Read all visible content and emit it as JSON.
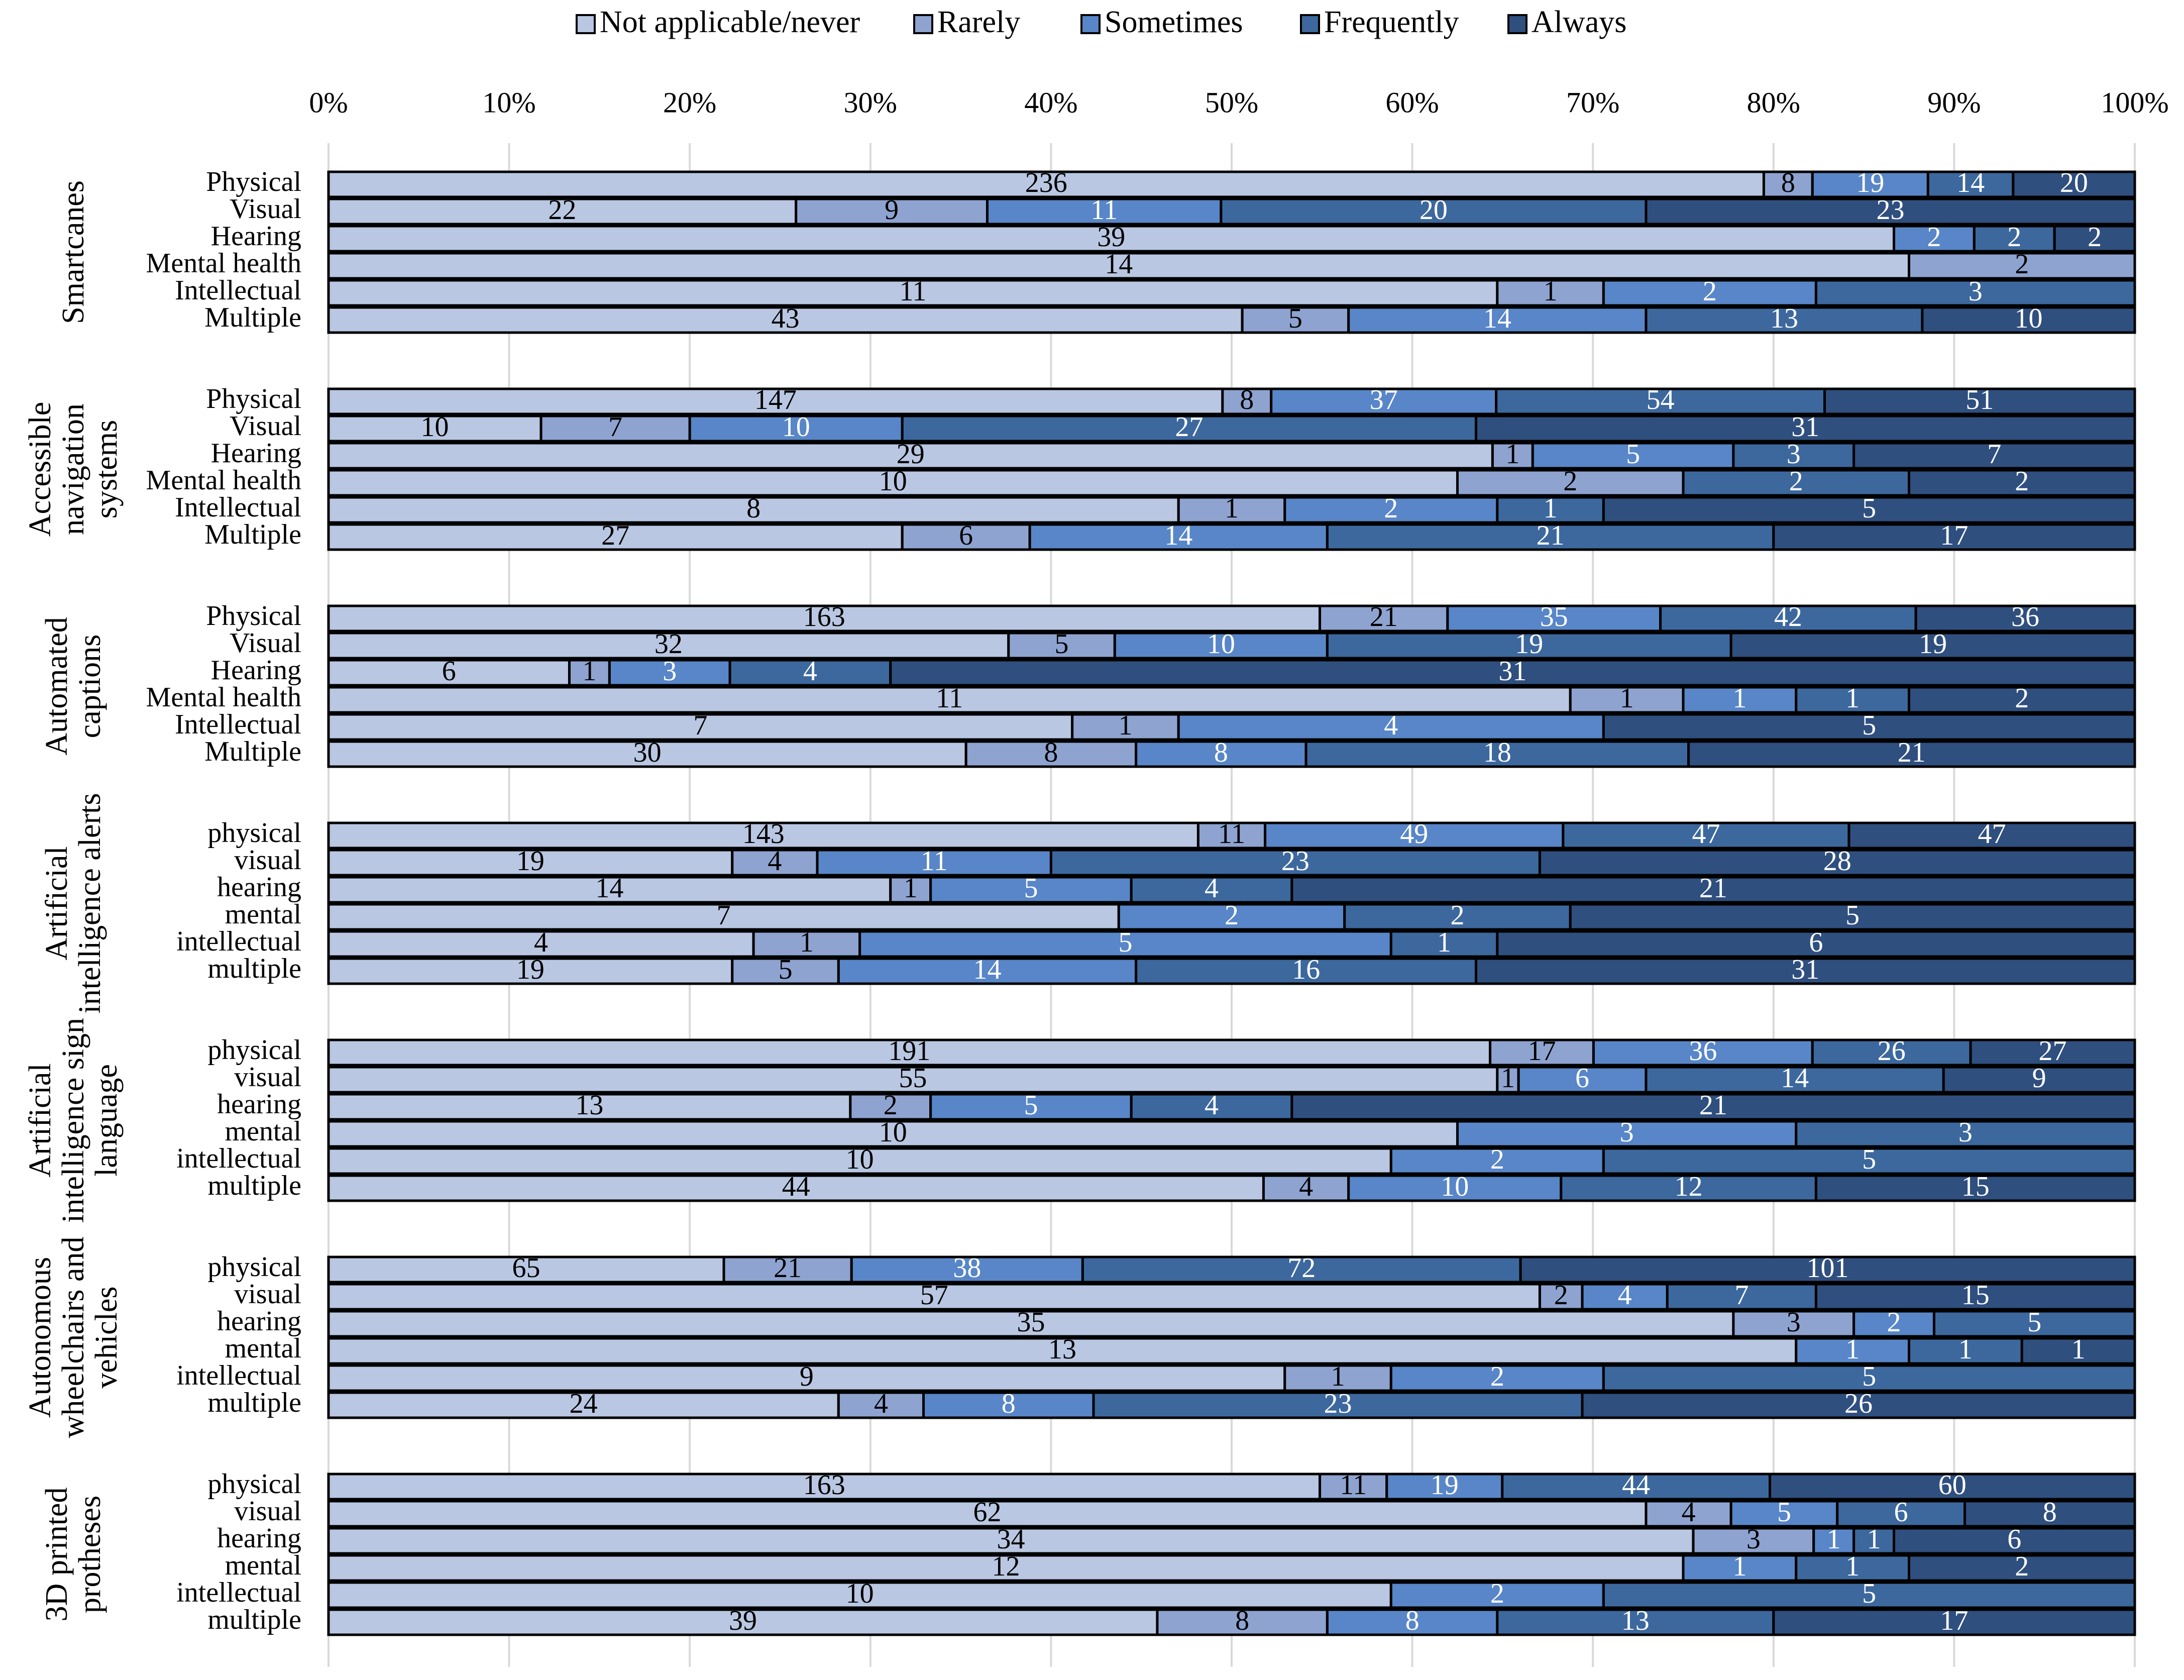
{
  "chart_data": {
    "type": "bar",
    "orientation": "horizontal",
    "stacking": "percent",
    "x_ticks": [
      "0%",
      "10%",
      "20%",
      "30%",
      "40%",
      "50%",
      "60%",
      "70%",
      "80%",
      "90%",
      "100%"
    ],
    "xlim": [
      0,
      100
    ],
    "grid": true,
    "legend_position": "top",
    "series_names": [
      "Not applicable/never",
      "Rarely",
      "Sometimes",
      "Frequently",
      "Always"
    ],
    "colors": [
      "#B9C7E2",
      "#8EA3D0",
      "#5886C8",
      "#3C689E",
      "#2F4F7F"
    ],
    "groups": [
      {
        "title": [
          "Smartcanes"
        ],
        "rows": [
          {
            "label": "Physical",
            "values": [
              236,
              8,
              19,
              14,
              20
            ]
          },
          {
            "label": "Visual",
            "values": [
              22,
              9,
              11,
              20,
              23
            ]
          },
          {
            "label": "Hearing",
            "values": [
              39,
              0,
              2,
              2,
              2
            ]
          },
          {
            "label": "Mental health",
            "values": [
              14,
              2,
              0,
              0,
              0
            ]
          },
          {
            "label": "Intellectual",
            "values": [
              11,
              1,
              2,
              3,
              0
            ]
          },
          {
            "label": "Multiple",
            "values": [
              43,
              5,
              14,
              13,
              10
            ]
          }
        ]
      },
      {
        "title": [
          "Accessible",
          "navigation",
          "systems"
        ],
        "rows": [
          {
            "label": "Physical",
            "values": [
              147,
              8,
              37,
              54,
              51
            ]
          },
          {
            "label": "Visual",
            "values": [
              10,
              7,
              10,
              27,
              31
            ]
          },
          {
            "label": "Hearing",
            "values": [
              29,
              1,
              5,
              3,
              7
            ]
          },
          {
            "label": "Mental health",
            "values": [
              10,
              2,
              0,
              2,
              2
            ]
          },
          {
            "label": "Intellectual",
            "values": [
              8,
              1,
              2,
              1,
              5
            ]
          },
          {
            "label": "Multiple",
            "values": [
              27,
              6,
              14,
              21,
              17
            ]
          }
        ]
      },
      {
        "title": [
          "Automated",
          "captions"
        ],
        "rows": [
          {
            "label": "Physical",
            "values": [
              163,
              21,
              35,
              42,
              36
            ]
          },
          {
            "label": "Visual",
            "values": [
              32,
              5,
              10,
              19,
              19
            ]
          },
          {
            "label": "Hearing",
            "values": [
              6,
              1,
              3,
              4,
              31
            ]
          },
          {
            "label": "Mental health",
            "values": [
              11,
              1,
              1,
              1,
              2
            ]
          },
          {
            "label": "Intellectual",
            "values": [
              7,
              1,
              4,
              0,
              5
            ]
          },
          {
            "label": "Multiple",
            "values": [
              30,
              8,
              8,
              18,
              21
            ]
          }
        ]
      },
      {
        "title": [
          "Artificial",
          "intelligence alerts"
        ],
        "rows": [
          {
            "label": "physical",
            "values": [
              143,
              11,
              49,
              47,
              47
            ]
          },
          {
            "label": "visual",
            "values": [
              19,
              4,
              11,
              23,
              28
            ]
          },
          {
            "label": "hearing",
            "values": [
              14,
              1,
              5,
              4,
              21
            ]
          },
          {
            "label": "mental",
            "values": [
              7,
              0,
              2,
              2,
              5
            ]
          },
          {
            "label": "intellectual",
            "values": [
              4,
              1,
              5,
              1,
              6
            ]
          },
          {
            "label": "multiple",
            "values": [
              19,
              5,
              14,
              16,
              31
            ]
          }
        ]
      },
      {
        "title": [
          "Artificial",
          "intelligence sign",
          "language"
        ],
        "rows": [
          {
            "label": "physical",
            "values": [
              191,
              17,
              36,
              26,
              27
            ]
          },
          {
            "label": "visual",
            "values": [
              55,
              1,
              6,
              14,
              9
            ]
          },
          {
            "label": "hearing",
            "values": [
              13,
              2,
              5,
              4,
              21
            ]
          },
          {
            "label": "mental",
            "values": [
              10,
              0,
              3,
              3,
              0
            ]
          },
          {
            "label": "intellectual",
            "values": [
              10,
              0,
              2,
              5,
              0
            ]
          },
          {
            "label": "multiple",
            "values": [
              44,
              4,
              10,
              12,
              15
            ]
          }
        ]
      },
      {
        "title": [
          "Autonomous",
          "wheelchairs and",
          "vehicles"
        ],
        "rows": [
          {
            "label": "physical",
            "values": [
              65,
              21,
              38,
              72,
              101
            ]
          },
          {
            "label": "visual",
            "values": [
              57,
              2,
              4,
              7,
              15
            ]
          },
          {
            "label": "hearing",
            "values": [
              35,
              3,
              2,
              5,
              0
            ]
          },
          {
            "label": "mental",
            "values": [
              13,
              0,
              1,
              1,
              1
            ]
          },
          {
            "label": "intellectual",
            "values": [
              9,
              1,
              2,
              5,
              0
            ]
          },
          {
            "label": "multiple",
            "values": [
              24,
              4,
              8,
              23,
              26
            ]
          }
        ]
      },
      {
        "title": [
          "3D printed",
          "protheses"
        ],
        "rows": [
          {
            "label": "physical",
            "values": [
              163,
              11,
              19,
              44,
              60
            ]
          },
          {
            "label": "visual",
            "values": [
              62,
              4,
              5,
              6,
              8
            ]
          },
          {
            "label": "hearing",
            "values": [
              34,
              3,
              1,
              1,
              6
            ]
          },
          {
            "label": "mental",
            "values": [
              12,
              0,
              1,
              1,
              2
            ]
          },
          {
            "label": "intellectual",
            "values": [
              10,
              0,
              2,
              5,
              0
            ]
          },
          {
            "label": "multiple",
            "values": [
              39,
              8,
              8,
              13,
              17
            ]
          }
        ]
      }
    ]
  }
}
